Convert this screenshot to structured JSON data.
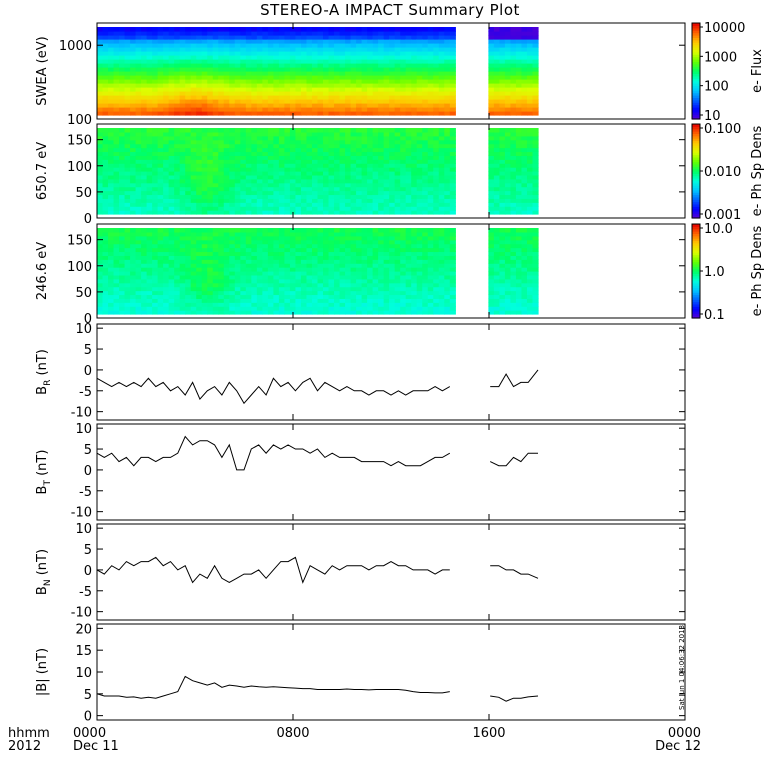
{
  "title": "STEREO-A IMPACT Summary Plot",
  "timestamp": "Sat Jun 1 04:06:32 2013",
  "xaxis": {
    "corner_label_top": "hhmm",
    "corner_label_bottom": "2012",
    "ticks": [
      {
        "hour": 0,
        "top": "0000",
        "bottom": "Dec 11"
      },
      {
        "hour": 8,
        "top": "0800",
        "bottom": ""
      },
      {
        "hour": 16,
        "top": "1600",
        "bottom": ""
      },
      {
        "hour": 24,
        "top": "0000",
        "bottom": "Dec 12"
      }
    ],
    "range_hours": [
      0,
      24
    ],
    "data_gaps_hours": [
      [
        14.65,
        16.05
      ],
      [
        18.0,
        24.0
      ]
    ]
  },
  "colors": {
    "spectrogram_scale": [
      "#5a00d2",
      "#0000ff",
      "#0064ff",
      "#00c8ff",
      "#00ffdc",
      "#00ff64",
      "#64ff00",
      "#dcff00",
      "#ffc800",
      "#ff6400",
      "#e60000"
    ],
    "line": "#000000"
  },
  "chart_data": [
    {
      "type": "heatmap",
      "ylabel": "SWEA (eV)",
      "yscale": "log",
      "ylim": [
        100,
        2000
      ],
      "yticks": [
        "100",
        "1000"
      ],
      "colorbar": {
        "label": "e- Flux",
        "scale": "log",
        "ticks": [
          "10",
          "100",
          "1000",
          "10000"
        ]
      }
    },
    {
      "type": "heatmap",
      "ylabel": "650.7 eV",
      "ylim": [
        0,
        180
      ],
      "yticks": [
        "0",
        "50",
        "100",
        "150"
      ],
      "colorbar": {
        "label": "e- Ph Sp Dens",
        "scale": "log",
        "ticks": [
          "0.001",
          "0.010",
          "0.100"
        ]
      }
    },
    {
      "type": "heatmap",
      "ylabel": "246.6 eV",
      "ylim": [
        0,
        180
      ],
      "yticks": [
        "0",
        "50",
        "100",
        "150"
      ],
      "colorbar": {
        "label": "e- Ph Sp Dens",
        "scale": "log",
        "ticks": [
          "0.1",
          "1.0",
          "10.0"
        ]
      }
    },
    {
      "type": "line",
      "ylabel": "B_R (nT)",
      "ylim": [
        -12,
        11
      ],
      "yticks": [
        "-10",
        "-5",
        "0",
        "5",
        "10"
      ],
      "x": [
        0,
        0.3,
        0.6,
        0.9,
        1.2,
        1.5,
        1.8,
        2.1,
        2.4,
        2.7,
        3.0,
        3.3,
        3.6,
        3.9,
        4.2,
        4.5,
        4.8,
        5.1,
        5.4,
        5.7,
        6.0,
        6.3,
        6.6,
        6.9,
        7.2,
        7.5,
        7.8,
        8.1,
        8.4,
        8.7,
        9.0,
        9.3,
        9.6,
        9.9,
        10.2,
        10.5,
        10.8,
        11.1,
        11.4,
        11.7,
        12.0,
        12.3,
        12.6,
        12.9,
        13.2,
        13.5,
        13.8,
        14.1,
        14.4,
        16.05,
        16.4,
        16.7,
        17.0,
        17.3,
        17.6,
        18.0
      ],
      "values": [
        -2,
        -3,
        -4,
        -3,
        -4,
        -3,
        -4,
        -2,
        -4,
        -3,
        -5,
        -4,
        -6,
        -3,
        -7,
        -5,
        -4,
        -6,
        -3,
        -5,
        -8,
        -6,
        -4,
        -6,
        -2,
        -4,
        -3,
        -5,
        -3,
        -2,
        -5,
        -3,
        -4,
        -5,
        -4,
        -5,
        -5,
        -6,
        -5,
        -5,
        -6,
        -5,
        -6,
        -5,
        -5,
        -5,
        -4,
        -5,
        -4,
        -4,
        -4,
        -1,
        -4,
        -3,
        -3,
        0
      ]
    },
    {
      "type": "line",
      "ylabel": "B_T (nT)",
      "ylim": [
        -12,
        11
      ],
      "yticks": [
        "-10",
        "-5",
        "0",
        "5",
        "10"
      ],
      "x": [
        0,
        0.3,
        0.6,
        0.9,
        1.2,
        1.5,
        1.8,
        2.1,
        2.4,
        2.7,
        3.0,
        3.3,
        3.6,
        3.9,
        4.2,
        4.5,
        4.8,
        5.1,
        5.4,
        5.7,
        6.0,
        6.3,
        6.6,
        6.9,
        7.2,
        7.5,
        7.8,
        8.1,
        8.4,
        8.7,
        9.0,
        9.3,
        9.6,
        9.9,
        10.2,
        10.5,
        10.8,
        11.1,
        11.4,
        11.7,
        12.0,
        12.3,
        12.6,
        12.9,
        13.2,
        13.5,
        13.8,
        14.1,
        14.4,
        16.05,
        16.4,
        16.7,
        17.0,
        17.3,
        17.6,
        18.0
      ],
      "values": [
        4,
        3,
        4,
        2,
        3,
        1,
        3,
        3,
        2,
        3,
        3,
        4,
        8,
        6,
        7,
        7,
        6,
        3,
        6,
        0,
        0,
        5,
        6,
        4,
        6,
        5,
        6,
        5,
        5,
        4,
        5,
        3,
        4,
        3,
        3,
        3,
        2,
        2,
        2,
        2,
        1,
        2,
        1,
        1,
        1,
        2,
        3,
        3,
        4,
        2,
        1,
        1,
        3,
        2,
        4,
        4
      ]
    },
    {
      "type": "line",
      "ylabel": "B_N (nT)",
      "ylim": [
        -12,
        11
      ],
      "yticks": [
        "-10",
        "-5",
        "0",
        "5",
        "10"
      ],
      "x": [
        0,
        0.3,
        0.6,
        0.9,
        1.2,
        1.5,
        1.8,
        2.1,
        2.4,
        2.7,
        3.0,
        3.3,
        3.6,
        3.9,
        4.2,
        4.5,
        4.8,
        5.1,
        5.4,
        5.7,
        6.0,
        6.3,
        6.6,
        6.9,
        7.2,
        7.5,
        7.8,
        8.1,
        8.4,
        8.7,
        9.0,
        9.3,
        9.6,
        9.9,
        10.2,
        10.5,
        10.8,
        11.1,
        11.4,
        11.7,
        12.0,
        12.3,
        12.6,
        12.9,
        13.2,
        13.5,
        13.8,
        14.1,
        14.4,
        16.05,
        16.4,
        16.7,
        17.0,
        17.3,
        17.6,
        18.0
      ],
      "values": [
        0,
        -1,
        1,
        0,
        2,
        1,
        2,
        2,
        3,
        1,
        2,
        0,
        1,
        -3,
        -1,
        -2,
        1,
        -2,
        -3,
        -2,
        -1,
        -1,
        0,
        -2,
        0,
        2,
        2,
        3,
        -3,
        1,
        0,
        -1,
        1,
        0,
        1,
        1,
        1,
        0,
        1,
        1,
        2,
        1,
        1,
        0,
        0,
        0,
        -1,
        0,
        0,
        1,
        1,
        0,
        0,
        -1,
        -1,
        -2
      ]
    },
    {
      "type": "line",
      "ylabel": "|B| (nT)",
      "ylim": [
        -1,
        21
      ],
      "yticks": [
        "0",
        "5",
        "10",
        "15",
        "20"
      ],
      "x": [
        0,
        0.3,
        0.6,
        0.9,
        1.2,
        1.5,
        1.8,
        2.1,
        2.4,
        2.7,
        3.0,
        3.3,
        3.6,
        3.9,
        4.2,
        4.5,
        4.8,
        5.1,
        5.4,
        5.7,
        6.0,
        6.3,
        6.6,
        6.9,
        7.2,
        7.5,
        7.8,
        8.1,
        8.4,
        8.7,
        9.0,
        9.3,
        9.6,
        9.9,
        10.2,
        10.5,
        10.8,
        11.1,
        11.4,
        11.7,
        12.0,
        12.3,
        12.6,
        12.9,
        13.2,
        13.5,
        13.8,
        14.1,
        14.4,
        16.05,
        16.4,
        16.7,
        17.0,
        17.3,
        17.6,
        18.0
      ],
      "values": [
        5,
        4.5,
        4.5,
        4.5,
        4.2,
        4.3,
        4.0,
        4.2,
        4.0,
        4.5,
        5.0,
        5.5,
        9.0,
        8.0,
        7.5,
        7.0,
        7.5,
        6.5,
        7.0,
        6.8,
        6.5,
        6.8,
        6.6,
        6.5,
        6.6,
        6.5,
        6.4,
        6.3,
        6.2,
        6.2,
        6.0,
        6.0,
        6.0,
        6.0,
        6.1,
        6.0,
        6.0,
        5.9,
        6.0,
        6.0,
        6.0,
        6.0,
        5.8,
        5.5,
        5.3,
        5.3,
        5.2,
        5.2,
        5.5,
        4.5,
        4.2,
        3.3,
        4.0,
        4.0,
        4.3,
        4.5
      ]
    }
  ]
}
